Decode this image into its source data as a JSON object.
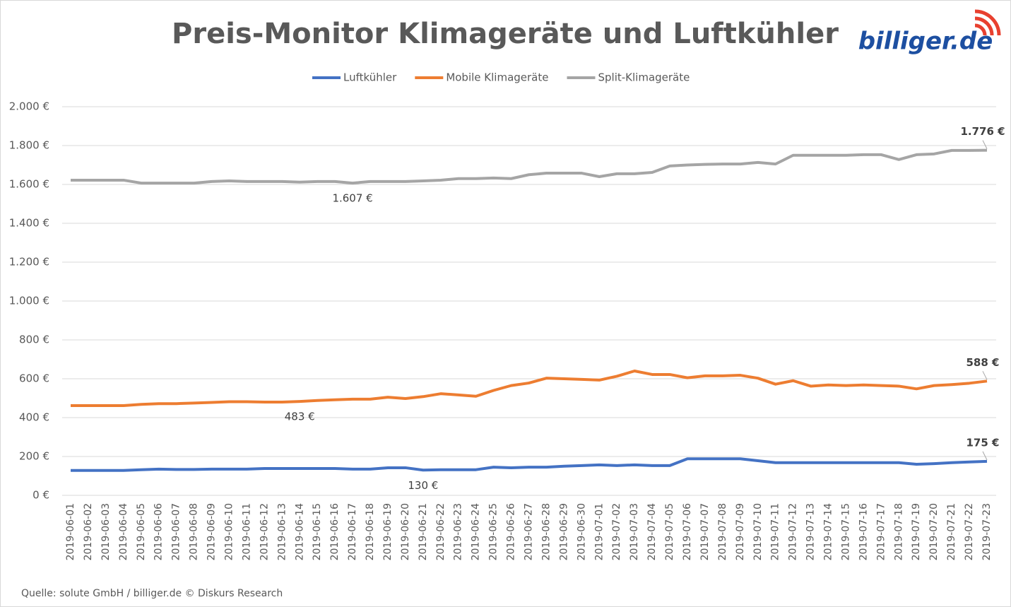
{
  "chart_data": {
    "type": "line",
    "title": "Preis-Monitor Klimageräte und Luftkühler",
    "logo": "billiger.de",
    "source": "Quelle: solute GmbH / billiger.de © Diskurs Research",
    "categories": [
      "2019-06-01",
      "2019-06-02",
      "2019-06-03",
      "2019-06-04",
      "2019-06-05",
      "2019-06-06",
      "2019-06-07",
      "2019-06-08",
      "2019-06-09",
      "2019-06-10",
      "2019-06-11",
      "2019-06-12",
      "2019-06-13",
      "2019-06-14",
      "2019-06-15",
      "2019-06-16",
      "2019-06-17",
      "2019-06-18",
      "2019-06-19",
      "2019-06-20",
      "2019-06-21",
      "2019-06-22",
      "2019-06-23",
      "2019-06-24",
      "2019-06-25",
      "2019-06-26",
      "2019-06-27",
      "2019-06-28",
      "2019-06-29",
      "2019-06-30",
      "2019-07-01",
      "2019-07-02",
      "2019-07-03",
      "2019-07-04",
      "2019-07-05",
      "2019-07-06",
      "2019-07-07",
      "2019-07-08",
      "2019-07-09",
      "2019-07-10",
      "2019-07-11",
      "2019-07-12",
      "2019-07-13",
      "2019-07-14",
      "2019-07-15",
      "2019-07-16",
      "2019-07-17",
      "2019-07-18",
      "2019-07-19",
      "2019-07-20",
      "2019-07-21",
      "2019-07-22",
      "2019-07-23"
    ],
    "series": [
      {
        "name": "Luftkühler",
        "color": "#4472c4",
        "values": [
          128,
          128,
          128,
          128,
          132,
          135,
          133,
          133,
          135,
          135,
          135,
          138,
          138,
          138,
          138,
          138,
          135,
          135,
          142,
          142,
          130,
          132,
          132,
          132,
          145,
          142,
          145,
          145,
          150,
          153,
          157,
          153,
          157,
          153,
          153,
          188,
          188,
          188,
          188,
          178,
          168,
          168,
          168,
          168,
          168,
          168,
          168,
          168,
          160,
          163,
          168,
          172,
          175
        ],
        "value_labels": [
          null,
          null,
          null,
          null,
          null,
          null,
          null,
          null,
          null,
          null,
          null,
          null,
          null,
          null,
          null,
          null,
          null,
          null,
          null,
          null,
          "130 €",
          null,
          null,
          null,
          null,
          null,
          null,
          null,
          null,
          null,
          null,
          null,
          null,
          null,
          null,
          null,
          null,
          null,
          null,
          null,
          null,
          null,
          null,
          null,
          null,
          null,
          null,
          null,
          null,
          null,
          null,
          null,
          "175 €"
        ]
      },
      {
        "name": "Mobile Klimageräte",
        "color": "#ed7d31",
        "values": [
          462,
          462,
          462,
          462,
          468,
          472,
          472,
          475,
          478,
          482,
          482,
          480,
          480,
          483,
          488,
          492,
          495,
          495,
          505,
          498,
          508,
          523,
          517,
          510,
          540,
          565,
          578,
          603,
          600,
          597,
          593,
          613,
          640,
          622,
          622,
          605,
          615,
          615,
          618,
          603,
          572,
          590,
          562,
          568,
          565,
          568,
          565,
          562,
          548,
          565,
          570,
          577,
          588
        ],
        "value_labels": [
          null,
          null,
          null,
          null,
          null,
          null,
          null,
          null,
          null,
          null,
          null,
          null,
          null,
          "483 €",
          null,
          null,
          null,
          null,
          null,
          null,
          null,
          null,
          null,
          null,
          null,
          null,
          null,
          null,
          null,
          null,
          null,
          null,
          null,
          null,
          null,
          null,
          null,
          null,
          null,
          null,
          null,
          null,
          null,
          null,
          null,
          null,
          null,
          null,
          null,
          null,
          null,
          null,
          "588 €"
        ]
      },
      {
        "name": "Split-Klimageräte",
        "color": "#a5a5a5",
        "values": [
          1622,
          1622,
          1622,
          1622,
          1607,
          1607,
          1607,
          1607,
          1615,
          1618,
          1615,
          1615,
          1615,
          1612,
          1615,
          1615,
          1607,
          1615,
          1615,
          1615,
          1618,
          1622,
          1630,
          1630,
          1633,
          1630,
          1650,
          1658,
          1658,
          1658,
          1640,
          1655,
          1655,
          1662,
          1695,
          1700,
          1703,
          1705,
          1705,
          1713,
          1705,
          1750,
          1750,
          1750,
          1750,
          1753,
          1753,
          1728,
          1753,
          1757,
          1775,
          1775,
          1776
        ],
        "value_labels": [
          null,
          null,
          null,
          null,
          null,
          null,
          null,
          null,
          null,
          null,
          null,
          null,
          null,
          null,
          null,
          null,
          "1.607 €",
          null,
          null,
          null,
          null,
          null,
          null,
          null,
          null,
          null,
          null,
          null,
          null,
          null,
          null,
          null,
          null,
          null,
          null,
          null,
          null,
          null,
          null,
          null,
          null,
          null,
          null,
          null,
          null,
          null,
          null,
          null,
          null,
          null,
          null,
          null,
          "1.776 €"
        ]
      }
    ],
    "ylim": [
      0,
      2000
    ],
    "yticks": [
      {
        "value": 0,
        "label": "0 €"
      },
      {
        "value": 200,
        "label": "200 €"
      },
      {
        "value": 400,
        "label": "400 €"
      },
      {
        "value": 600,
        "label": "600 €"
      },
      {
        "value": 800,
        "label": "800 €"
      },
      {
        "value": 1000,
        "label": "1.000 €"
      },
      {
        "value": 1200,
        "label": "1.200 €"
      },
      {
        "value": 1400,
        "label": "1.400 €"
      },
      {
        "value": 1600,
        "label": "1.600 €"
      },
      {
        "value": 1800,
        "label": "1.800 €"
      },
      {
        "value": 2000,
        "label": "2.000 €"
      }
    ],
    "grid": true,
    "legend": "top"
  }
}
